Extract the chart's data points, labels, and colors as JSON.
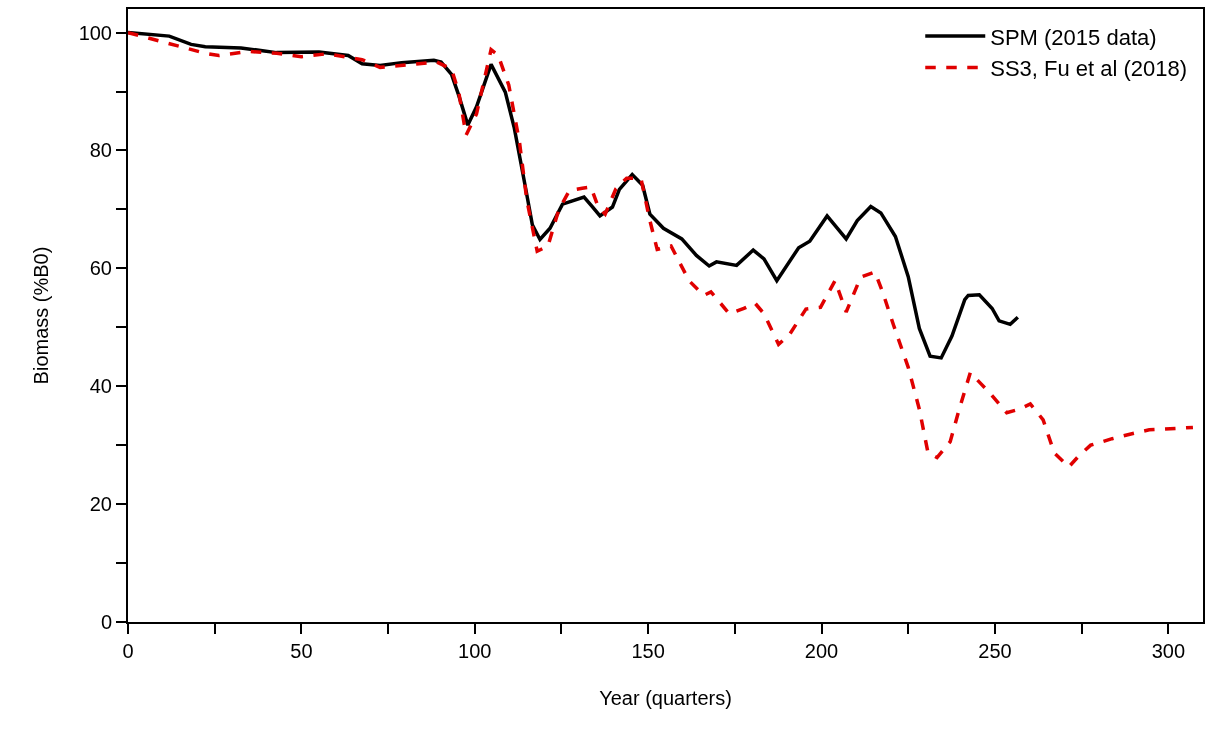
{
  "chart_data": {
    "type": "line",
    "xlabel": "Year (quarters)",
    "ylabel": "Biomass (%B0)",
    "xlim": [
      0,
      310
    ],
    "ylim": [
      0,
      104
    ],
    "xticks": [
      0,
      {
        "value": 25,
        "label": null
      },
      50,
      {
        "value": 75,
        "label": null
      },
      100,
      {
        "value": 125,
        "label": null
      },
      150,
      {
        "value": 175,
        "label": null
      },
      200,
      {
        "value": 225,
        "label": null
      },
      250,
      {
        "value": 275,
        "label": null
      },
      300
    ],
    "yticks": [
      0,
      {
        "value": 10,
        "label": null
      },
      20,
      {
        "value": 30,
        "label": null
      },
      40,
      {
        "value": 50,
        "label": null
      },
      60,
      {
        "value": 70,
        "label": null
      },
      80,
      {
        "value": 90,
        "label": null
      },
      100
    ],
    "grid": false,
    "legend": "top right",
    "marker": "none",
    "series": [
      {
        "name": "SPM (2015 data)",
        "color": "#000000",
        "line_style": "solid",
        "x": [
          0,
          11.9,
          18.2,
          22.3,
          32.6,
          42.8,
          55.1,
          63.5,
          67.5,
          72.7,
          78.9,
          88.2,
          90.3,
          93.3,
          95.4,
          98.0,
          100.5,
          104.7,
          108.8,
          111.4,
          114.5,
          116.6,
          118.8,
          121.7,
          125.3,
          131.5,
          134.0,
          136.1,
          139.7,
          141.7,
          145.4,
          148.4,
          150.5,
          154.4,
          159.7,
          163.9,
          167.6,
          169.7,
          175.5,
          180.3,
          183.4,
          187.1,
          193.4,
          196.6,
          201.6,
          207.1,
          210.3,
          214.2,
          217.1,
          221.3,
          225.0,
          228.2,
          231.3,
          234.5,
          237.6,
          241.3,
          242.3,
          245.5,
          249.2,
          251.2,
          254.4,
          256.6
        ],
        "values": [
          100,
          99.4,
          98.0,
          97.6,
          97.4,
          96.6,
          96.7,
          96.1,
          94.7,
          94.4,
          94.9,
          95.3,
          95.0,
          92.9,
          89.3,
          84.3,
          87.4,
          94.6,
          89.9,
          83.8,
          74.1,
          67.4,
          64.9,
          66.8,
          70.9,
          72.1,
          70.4,
          68.9,
          70.4,
          73.4,
          75.9,
          74.1,
          69.2,
          66.8,
          65.0,
          62.2,
          60.4,
          61.1,
          60.5,
          63.1,
          61.6,
          57.9,
          63.5,
          64.6,
          68.9,
          65.0,
          68.1,
          70.5,
          69.4,
          65.4,
          58.6,
          49.8,
          45.1,
          44.8,
          48.5,
          54.7,
          55.4,
          55.5,
          53.2,
          51.1,
          50.5,
          51.7
        ]
      },
      {
        "name": "SS3, Fu et al (2018)",
        "color": "#e00000",
        "line_style": "dashed",
        "x": [
          0,
          22.2,
          26.2,
          34.6,
          42.9,
          50.0,
          57.3,
          67.5,
          72.7,
          83.9,
          89.1,
          93.3,
          95.4,
          97.5,
          100.5,
          104.7,
          106.7,
          109.8,
          112.9,
          115.0,
          118.0,
          121.1,
          124.2,
          127.3,
          131.0,
          133.5,
          135.6,
          137.6,
          140.7,
          143.8,
          147.9,
          150.5,
          152.6,
          156.6,
          161.8,
          166.0,
          168.1,
          173.4,
          177.6,
          180.8,
          183.4,
          187.6,
          190.8,
          195.5,
          199.7,
          203.9,
          207.1,
          211.3,
          215.4,
          217.6,
          220.8,
          225.0,
          228.2,
          230.7,
          233.3,
          237.1,
          239.7,
          242.9,
          246.0,
          248.0,
          253.4,
          257.0,
          260.2,
          263.9,
          267.1,
          271.3,
          273.9,
          277.6,
          283.8,
          289.2,
          294.5,
          307.1
        ],
        "values": [
          100,
          96.5,
          96.1,
          96.8,
          96.5,
          95.9,
          96.4,
          95.4,
          94.1,
          94.7,
          95.0,
          93.8,
          89.8,
          82.6,
          86.2,
          97.1,
          96.2,
          91.1,
          81.4,
          71.6,
          62.9,
          63.8,
          69.9,
          73.2,
          73.6,
          73.8,
          70.4,
          69.2,
          73.5,
          75.3,
          75.3,
          68.1,
          63.2,
          63.8,
          57.9,
          55.4,
          56.0,
          52.3,
          53.2,
          54.1,
          52.3,
          47.1,
          48.8,
          53.1,
          53.4,
          57.9,
          52.6,
          58.5,
          59.4,
          56.0,
          50.3,
          43.2,
          36.1,
          28.7,
          27.9,
          30.6,
          36.1,
          42.3,
          40.4,
          39.2,
          35.5,
          36.1,
          37.0,
          34.3,
          28.7,
          26.3,
          28.0,
          30.0,
          31.1,
          31.9,
          32.6,
          33.0
        ]
      }
    ]
  }
}
